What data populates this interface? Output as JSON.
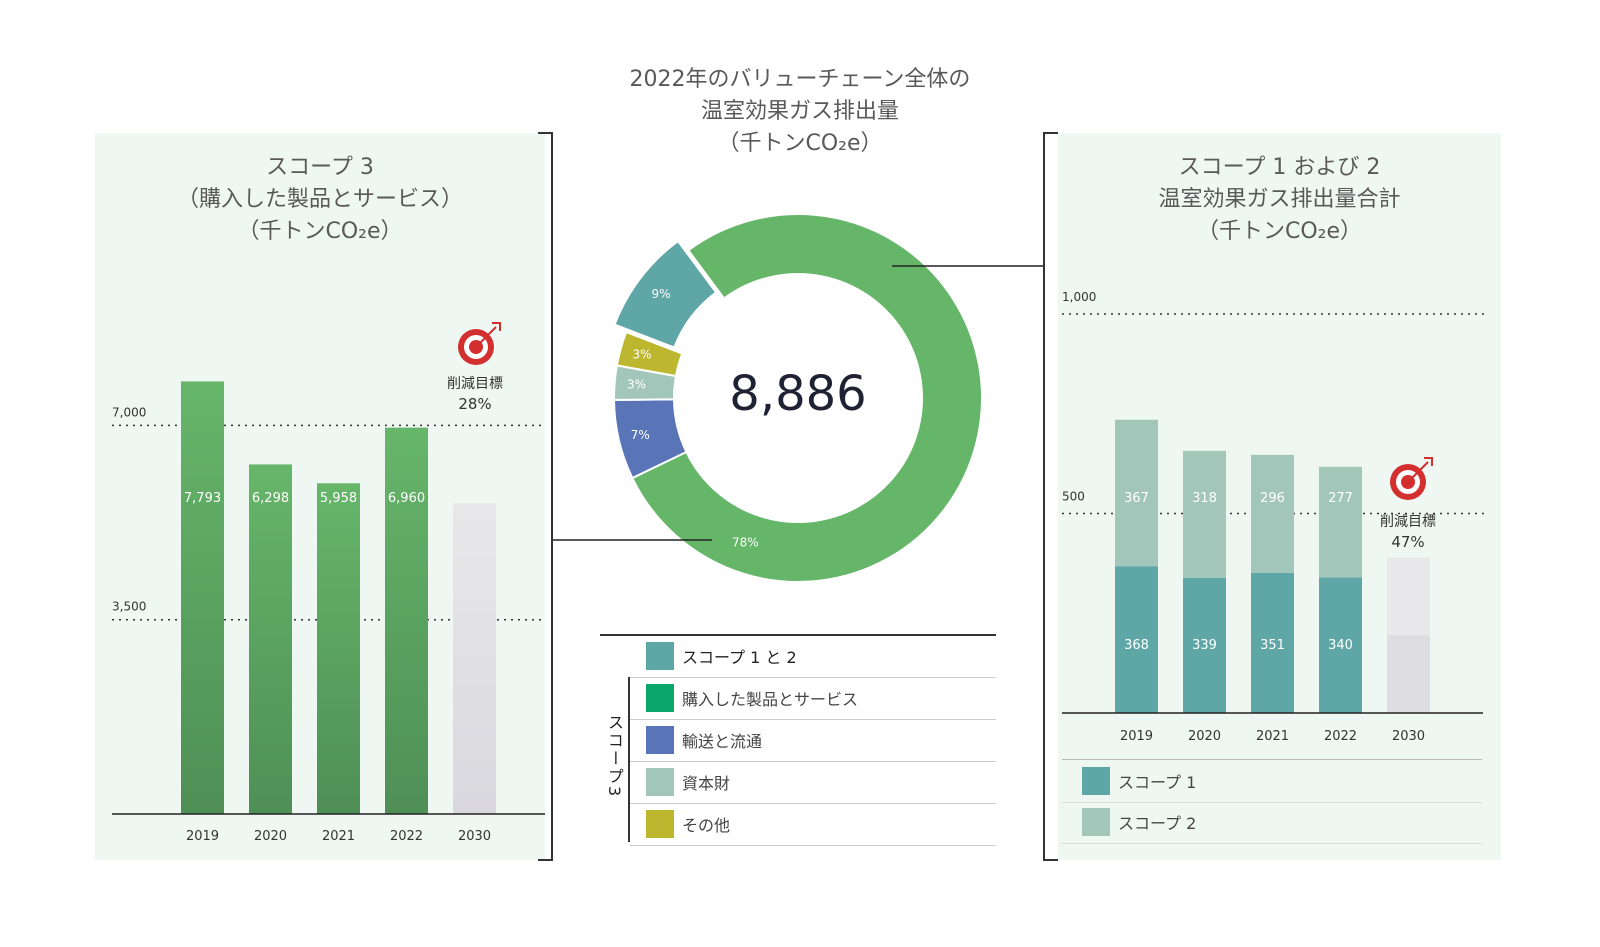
{
  "center_title": [
    "2022年のバリューチェーン全体の",
    "温室効果ガス排出量",
    "（千トンCO₂e）"
  ],
  "left_title": [
    "スコープ 3",
    "（購入した製品とサービス）",
    "（千トンCO₂e）"
  ],
  "right_title": [
    "スコープ 1 および 2",
    "温室効果ガス排出量合計",
    "（千トンCO₂e）"
  ],
  "donut_total": "8,886",
  "left_target": {
    "label": "削減目標",
    "value": "28%"
  },
  "right_target": {
    "label": "削減目標",
    "value": "47%"
  },
  "legend": {
    "main": "スコープ 1 と 2",
    "group_label": "スコープ3",
    "items": [
      "購入した製品とサービス",
      "輸送と流通",
      "資本財",
      "その他"
    ]
  },
  "right_legend": [
    "スコープ 1",
    "スコープ 2"
  ],
  "colors": {
    "green": "#66b66a",
    "green_dark": "#4f8f56",
    "teal": "#5fa6a6",
    "teal_light": "#a3c6ba",
    "blue": "#5a74b8",
    "olive": "#bcb72e",
    "target_gray": "#e4e4e8",
    "legend_green": "#0aa66a"
  },
  "chart_data": [
    {
      "type": "pie",
      "title": "2022年のバリューチェーン全体の温室効果ガス排出量（千トンCO₂e）",
      "total": "8,886",
      "slices": [
        {
          "name": "購入した製品とサービス",
          "value": 78,
          "label": "78%",
          "color": "#66b66a"
        },
        {
          "name": "輸送と流通",
          "value": 7,
          "label": "7%",
          "color": "#5a74b8"
        },
        {
          "name": "資本財",
          "value": 3,
          "label": "3%",
          "color": "#a3c6ba"
        },
        {
          "name": "その他",
          "value": 3,
          "label": "3%",
          "color": "#bcb72e"
        },
        {
          "name": "スコープ 1 と 2",
          "value": 9,
          "label": "9%",
          "color": "#5fa6a6"
        }
      ]
    },
    {
      "type": "bar",
      "title": "スコープ 3（購入した製品とサービス）（千トンCO₂e）",
      "categories": [
        "2019",
        "2020",
        "2021",
        "2022",
        "2030"
      ],
      "values": [
        7793,
        6298,
        5958,
        6960,
        5600
      ],
      "value_labels": [
        "7,793",
        "6,298",
        "5,958",
        "6,960",
        ""
      ],
      "target_category": "2030",
      "yticks": [
        {
          "value": 3500,
          "label": "3,500"
        },
        {
          "value": 7000,
          "label": "7,000"
        }
      ],
      "ylim": [
        0,
        9800
      ]
    },
    {
      "type": "bar",
      "stacked": true,
      "title": "スコープ 1 および 2 温室効果ガス排出量合計（千トンCO₂e）",
      "categories": [
        "2019",
        "2020",
        "2021",
        "2022",
        "2030"
      ],
      "series": [
        {
          "name": "スコープ 1",
          "values": [
            368,
            339,
            351,
            340,
            195
          ]
        },
        {
          "name": "スコープ 2",
          "values": [
            367,
            318,
            296,
            277,
            195
          ]
        }
      ],
      "target_category": "2030",
      "yticks": [
        {
          "value": 500,
          "label": "500"
        },
        {
          "value": 1000,
          "label": "1,000"
        }
      ],
      "ylim": [
        0,
        1000
      ]
    }
  ]
}
